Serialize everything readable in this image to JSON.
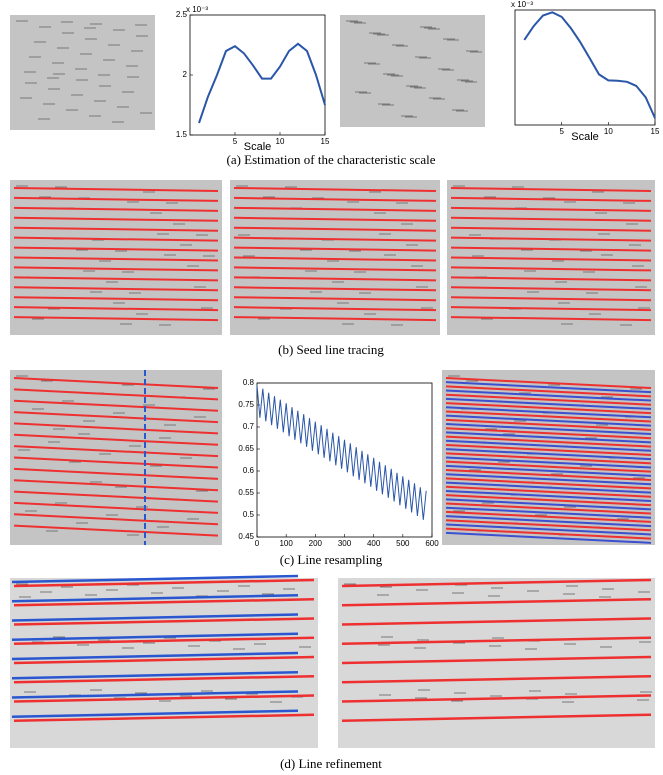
{
  "chart_data": [
    {
      "type": "line",
      "x": [
        1,
        2,
        3,
        4,
        5,
        6,
        7,
        8,
        9,
        10,
        11,
        12,
        13,
        14,
        15
      ],
      "series": [
        {
          "color": "#2a56a8",
          "values": [
            1.6,
            1.82,
            2.0,
            2.2,
            2.24,
            2.18,
            2.08,
            1.97,
            1.97,
            2.07,
            2.2,
            2.26,
            2.2,
            2.0,
            1.75
          ]
        }
      ],
      "xlim": [
        0,
        15
      ],
      "xticks": [
        5,
        10,
        15
      ],
      "ylim": [
        1.5,
        2.5
      ],
      "yticks": [
        1.5,
        2,
        2.5
      ],
      "x_label": "Scale",
      "y_multiplier": "x 10⁻³"
    },
    {
      "type": "line",
      "x": [
        1,
        2,
        3,
        4,
        5,
        6,
        7,
        8,
        9,
        10,
        11,
        12,
        13,
        14,
        15
      ],
      "series": [
        {
          "color": "#2a56a8",
          "values": [
            2.35,
            2.65,
            2.88,
            2.95,
            2.85,
            2.6,
            2.3,
            1.95,
            1.6,
            1.47,
            1.46,
            1.44,
            1.35,
            1.1,
            0.65
          ]
        }
      ],
      "xlim": [
        0,
        15
      ],
      "xticks": [
        5,
        10,
        15
      ],
      "ylim": [
        0.5,
        3
      ],
      "yticks": [],
      "x_label": "Scale",
      "y_multiplier": "x 10⁻³"
    },
    {
      "type": "line",
      "x": [
        0,
        10,
        20,
        30,
        40,
        50,
        60,
        70,
        80,
        90,
        100,
        110,
        120,
        130,
        140,
        150,
        160,
        170,
        180,
        190,
        200,
        210,
        220,
        230,
        240,
        250,
        260,
        270,
        280,
        290,
        300,
        310,
        320,
        330,
        340,
        350,
        360,
        370,
        380,
        390,
        400,
        410,
        420,
        430,
        440,
        450,
        460,
        470,
        480,
        490,
        500,
        510,
        520,
        530,
        540,
        550,
        560,
        570,
        580
      ],
      "series": [
        {
          "color": "#2a56a8",
          "values": [
            0.795,
            0.721,
            0.787,
            0.713,
            0.778,
            0.704,
            0.77,
            0.696,
            0.762,
            0.688,
            0.754,
            0.679,
            0.745,
            0.671,
            0.737,
            0.663,
            0.729,
            0.655,
            0.72,
            0.646,
            0.712,
            0.638,
            0.704,
            0.63,
            0.696,
            0.622,
            0.687,
            0.613,
            0.679,
            0.605,
            0.671,
            0.597,
            0.663,
            0.588,
            0.654,
            0.58,
            0.646,
            0.572,
            0.638,
            0.564,
            0.63,
            0.555,
            0.621,
            0.547,
            0.613,
            0.539,
            0.605,
            0.531,
            0.596,
            0.522,
            0.588,
            0.514,
            0.58,
            0.506,
            0.572,
            0.498,
            0.563,
            0.489,
            0.555
          ]
        }
      ],
      "xlim": [
        0,
        600
      ],
      "xticks": [
        0,
        100,
        200,
        300,
        400,
        500,
        600
      ],
      "ylim": [
        0.45,
        0.8
      ],
      "yticks": [
        0.45,
        0.5,
        0.55,
        0.6,
        0.65,
        0.7,
        0.75,
        0.8
      ]
    }
  ],
  "captions": [
    "(a) Estimation of the characteristic scale",
    "(b) Seed line tracing",
    "(c) Line resampling",
    "(d) Line refinement"
  ]
}
